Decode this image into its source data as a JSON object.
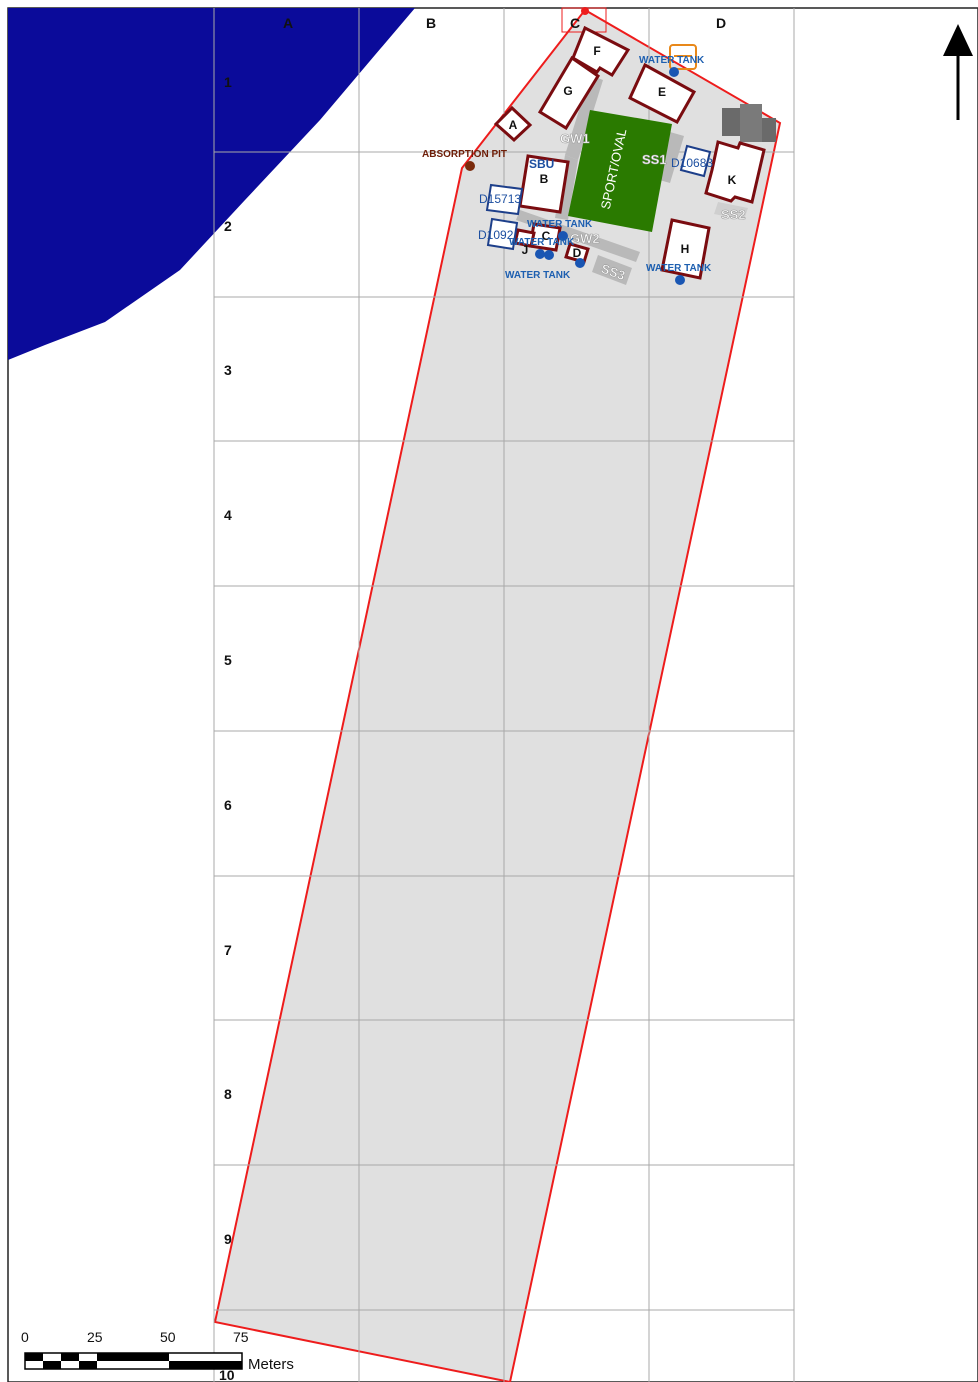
{
  "map": {
    "column_labels": [
      "A",
      "B",
      "C",
      "D"
    ],
    "row_labels": [
      "1",
      "2",
      "3",
      "4",
      "5",
      "6",
      "7",
      "8",
      "9",
      "10"
    ],
    "colors": {
      "water": "#0b0b9a",
      "site_fill": "#e0e0e0",
      "site_border": "#ee1c1c",
      "building_outline": "#7a0c10",
      "blue_building_outline": "#1d3f8a",
      "sport_oval": "#2a7a00",
      "road": "#b9b9b9",
      "tank_point": "#1a56b3",
      "pit_point": "#7a2a0c",
      "grid": "#a8a8a8"
    },
    "buildings": {
      "A": "A",
      "B": "B",
      "C": "C",
      "D": "D",
      "E": "E",
      "F": "F",
      "G": "G",
      "H": "H",
      "J": "J",
      "K": "K"
    },
    "blue_buildings": {
      "d15713": "D15713",
      "d10926": "D1092",
      "d10683": "D10683"
    },
    "features": {
      "sport_oval": "SPORT/OVAL",
      "gw1": "GW1",
      "gw2": "GW2",
      "ss1": "SS1",
      "ss2": "SS2",
      "ss3": "SS3",
      "sbu": "SBU",
      "absorption_pit": "ABSORPTION PIT"
    },
    "water_tanks": {
      "top": "WATER TANK",
      "overlap1": "WATER TANK",
      "overlap2": "WATER TANK",
      "bottom_left": "WATER TANK",
      "right": "WATER TANK"
    },
    "north_arrow_icon": "north-arrow-icon",
    "scale_bar": {
      "ticks": [
        "0",
        "25",
        "50",
        "75"
      ],
      "unit": "Meters"
    }
  }
}
